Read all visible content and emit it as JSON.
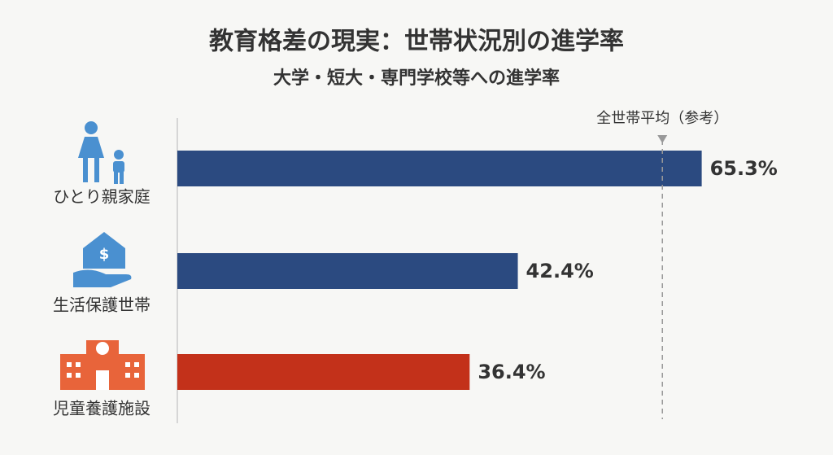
{
  "chart_data": {
    "type": "hbar",
    "title": "教育格差の現実：世帯状況別の進学率",
    "subtitle": "大学・短大・専門学校等への進学率",
    "categories": [
      "ひとり親家庭",
      "生活保護世帯",
      "児童養護施設"
    ],
    "values": [
      65.3,
      42.4,
      36.4
    ],
    "value_labels": [
      "65.3%",
      "42.4%",
      "36.4%"
    ],
    "colors": [
      "#2b4a80",
      "#2b4a80",
      "#c3311a"
    ],
    "xlim": [
      0,
      70
    ],
    "reference": {
      "label": "全世帯平均（参考）",
      "value": 60.4
    }
  }
}
